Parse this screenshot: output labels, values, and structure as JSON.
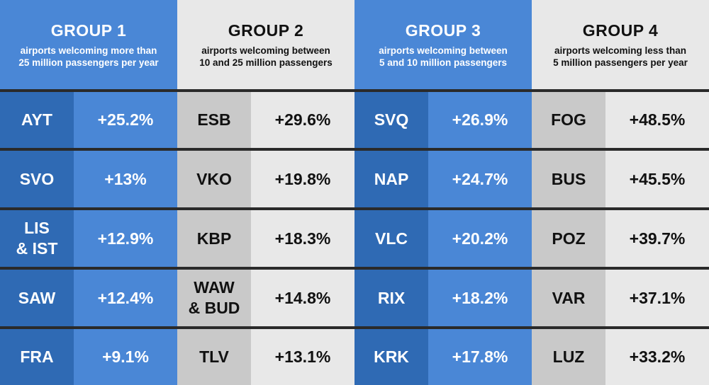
{
  "groups": [
    {
      "title": "GROUP 1",
      "subtitle_line1": "airports welcoming more than",
      "subtitle_line2": "25 million  passengers per year",
      "theme": "blue",
      "rows": [
        {
          "code": "AYT",
          "change": "+25.2%"
        },
        {
          "code": "SVO",
          "change": "+13%"
        },
        {
          "code_line1": "LIS",
          "code_line2": "& IST",
          "change": "+12.9%"
        },
        {
          "code": "SAW",
          "change": "+12.4%"
        },
        {
          "code": "FRA",
          "change": "+9.1%"
        }
      ]
    },
    {
      "title": "GROUP 2",
      "subtitle_line1": "airports welcoming between",
      "subtitle_line2": "10 and 25 million  passengers",
      "theme": "grey",
      "rows": [
        {
          "code": "ESB",
          "change": "+29.6%"
        },
        {
          "code": "VKO",
          "change": "+19.8%"
        },
        {
          "code": "KBP",
          "change": "+18.3%"
        },
        {
          "code_line1": "WAW",
          "code_line2": "& BUD",
          "change": "+14.8%"
        },
        {
          "code": "TLV",
          "change": "+13.1%"
        }
      ]
    },
    {
      "title": "GROUP 3",
      "subtitle_line1": "airports welcoming between",
      "subtitle_line2": "5 and  10 million  passengers",
      "theme": "blue",
      "rows": [
        {
          "code": "SVQ",
          "change": "+26.9%"
        },
        {
          "code": "NAP",
          "change": "+24.7%"
        },
        {
          "code": "VLC",
          "change": "+20.2%"
        },
        {
          "code": "RIX",
          "change": "+18.2%"
        },
        {
          "code": "KRK",
          "change": "+17.8%"
        }
      ]
    },
    {
      "title": "GROUP 4",
      "subtitle_line1": "airports welcoming less than",
      "subtitle_line2": "5 million  passengers per year",
      "theme": "grey",
      "rows": [
        {
          "code": "FOG",
          "change": "+48.5%"
        },
        {
          "code": "BUS",
          "change": "+45.5%"
        },
        {
          "code": "POZ",
          "change": "+39.7%"
        },
        {
          "code": "VAR",
          "change": "+37.1%"
        },
        {
          "code": "LUZ",
          "change": "+33.2%"
        }
      ]
    }
  ],
  "colors": {
    "blue_light": "#4a87d6",
    "blue_dark": "#2f6ab4",
    "grey_light": "#e8e8e8",
    "grey_dark": "#c9c9c9",
    "separator": "#2a2a2a"
  }
}
